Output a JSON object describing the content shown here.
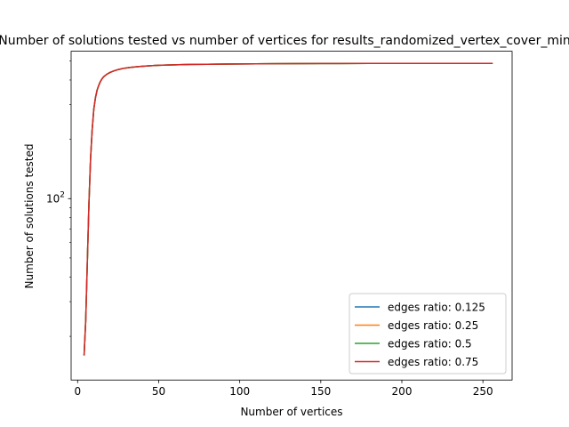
{
  "chart_data": {
    "type": "line",
    "title": "Number of solutions tested vs number of vertices for results_randomized_vertex_cover_min",
    "xlabel": "Number of vertices",
    "ylabel": "Number of solutions tested",
    "xlim": [
      -4,
      268
    ],
    "ylim": [
      12,
      560
    ],
    "yscale": "log",
    "x_ticks": [
      0,
      50,
      100,
      150,
      200,
      250
    ],
    "y_ticks": [
      {
        "value": 100,
        "label": "10^2"
      }
    ],
    "grid": false,
    "legend_position": "lower-right",
    "x": [
      4,
      5,
      6,
      7,
      8,
      9,
      10,
      11,
      12,
      13,
      14,
      15,
      16,
      18,
      20,
      22,
      25,
      28,
      32,
      36,
      40,
      45,
      50,
      60,
      70,
      80,
      100,
      120,
      150,
      180,
      200,
      230,
      256
    ],
    "series": [
      {
        "name": "edges ratio: 0.125",
        "color": "#1f77b4",
        "values": [
          16,
          24,
          48,
          95,
          160,
          225,
          285,
          325,
          355,
          375,
          392,
          405,
          415,
          428,
          437,
          444,
          452,
          458,
          463,
          467,
          470,
          473,
          475,
          478,
          480,
          481,
          483,
          484,
          485,
          486,
          486,
          486,
          486
        ]
      },
      {
        "name": "edges ratio: 0.25",
        "color": "#ff7f0e",
        "values": [
          16,
          24,
          48,
          95,
          160,
          225,
          285,
          325,
          355,
          375,
          392,
          405,
          415,
          428,
          437,
          444,
          452,
          458,
          463,
          467,
          470,
          473,
          475,
          478,
          480,
          481,
          483,
          484,
          485,
          486,
          486,
          486,
          486
        ]
      },
      {
        "name": "edges ratio: 0.5",
        "color": "#2ca02c",
        "values": [
          16,
          24,
          48,
          95,
          160,
          225,
          285,
          325,
          355,
          375,
          392,
          405,
          415,
          428,
          437,
          444,
          452,
          458,
          463,
          467,
          470,
          473,
          475,
          478,
          480,
          481,
          483,
          484,
          485,
          486,
          486,
          486,
          486
        ]
      },
      {
        "name": "edges ratio: 0.75",
        "color": "#d62728",
        "values": [
          16,
          24,
          48,
          95,
          160,
          225,
          285,
          325,
          355,
          375,
          392,
          405,
          415,
          428,
          437,
          444,
          452,
          458,
          463,
          467,
          470,
          473,
          475,
          478,
          480,
          481,
          483,
          484,
          485,
          486,
          486,
          486,
          486
        ]
      }
    ]
  }
}
